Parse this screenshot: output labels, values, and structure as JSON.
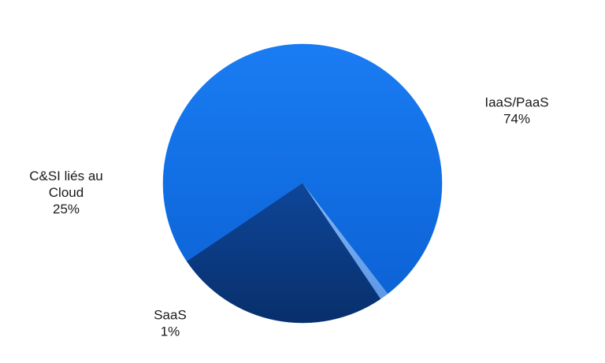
{
  "chart_data": {
    "type": "pie",
    "title": "",
    "slices": [
      {
        "label_lines": [
          "IaaS/PaaS"
        ],
        "value": 74,
        "value_label": "74%",
        "color": "#1475ee"
      },
      {
        "label_lines": [
          "SaaS"
        ],
        "value": 1,
        "value_label": "1%",
        "color": "#6fa8ef"
      },
      {
        "label_lines": [
          "C&SI liés au",
          "Cloud"
        ],
        "value": 25,
        "value_label": "25%",
        "color": "#0c3d8a"
      }
    ],
    "legend": "none",
    "labels_placement": "outside"
  }
}
